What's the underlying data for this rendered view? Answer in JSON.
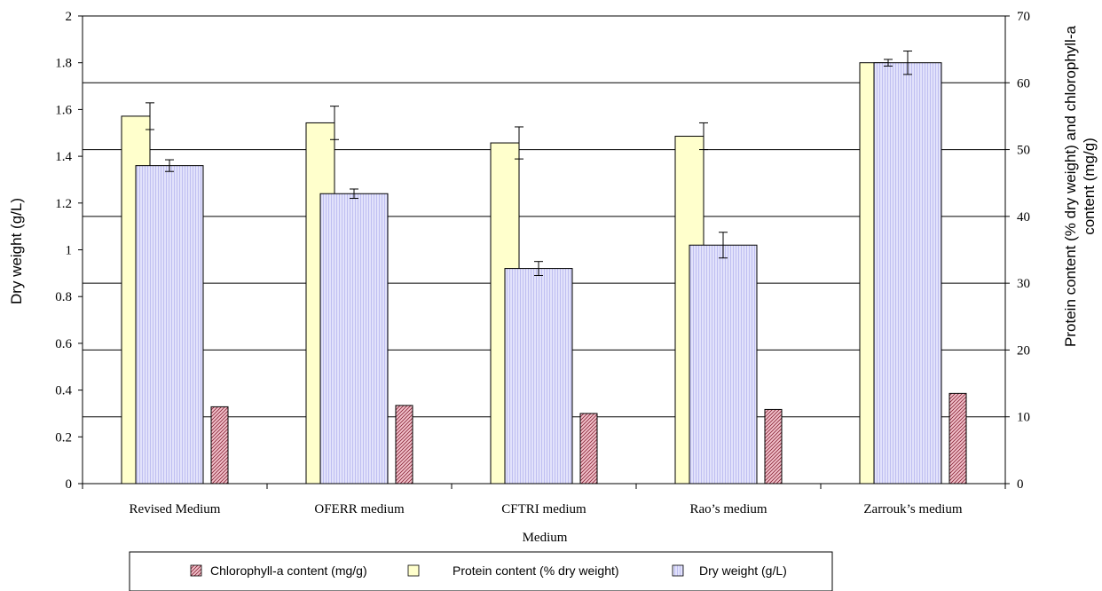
{
  "chart_data": {
    "type": "bar",
    "xlabel": "Medium",
    "ylabel": "Dry weight (g/L)",
    "y2label_lines": [
      "Protein content (% dry weight) and chlorophyll-a",
      "content (mg/g)"
    ],
    "categories": [
      "Revised Medium",
      "OFERR medium",
      "CFTRI medium",
      "Rao’s medium",
      "Zarrouk’s medium"
    ],
    "ylim": [
      0,
      2
    ],
    "yticks": [
      "0",
      "0.2",
      "0.4",
      "0.6",
      "0.8",
      "1",
      "1.2",
      "1.4",
      "1.6",
      "1.8",
      "2"
    ],
    "y2lim": [
      0,
      70
    ],
    "y2ticks": [
      "0",
      "10",
      "20",
      "30",
      "40",
      "50",
      "60",
      "70"
    ],
    "grid": true,
    "legend_position": "bottom",
    "series": [
      {
        "name": "Chlorophyll-a content (mg/g)",
        "axis": "secondary",
        "pattern": "hatched",
        "color": "#f3c2cc",
        "stroke": "#7a1d30",
        "values": [
          11.5,
          11.7,
          10.5,
          11.1,
          13.5
        ]
      },
      {
        "name": "Protein content (% dry weight)",
        "axis": "secondary",
        "pattern": "solid",
        "color": "#ffffcc",
        "values": [
          55,
          54,
          51,
          52,
          63
        ],
        "errors": [
          2.0,
          2.5,
          2.4,
          2.0,
          0.5
        ]
      },
      {
        "name": "Dry weight (g/L)",
        "axis": "primary",
        "pattern": "vertical-lines",
        "color": "#dcdcfa",
        "values": [
          1.36,
          1.24,
          0.92,
          1.02,
          1.8
        ],
        "errors": [
          0.025,
          0.02,
          0.03,
          0.055,
          0.05
        ]
      }
    ]
  }
}
